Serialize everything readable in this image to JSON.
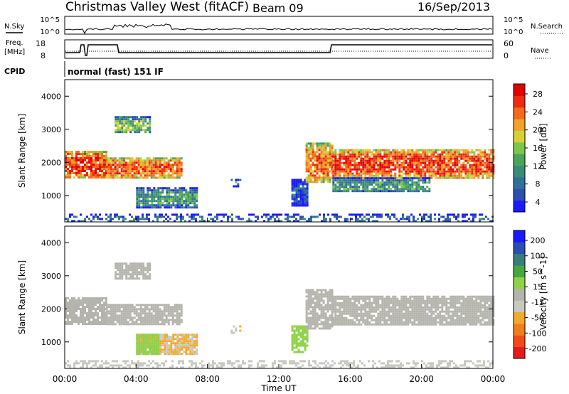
{
  "header": {
    "station": "Christmas Valley West (fitACF)",
    "beam": "Beam 09",
    "date": "16/Sep/2013"
  },
  "top_panels": {
    "nsky_label": "N.Sky",
    "nsky_ticks": [
      "10^5",
      "10^0"
    ],
    "nsearch_label": "N.Search",
    "nsearch_ticks": [
      "10^5",
      "10^0"
    ],
    "freq_label_line1": "Freq.",
    "freq_label_line2": "[MHz]",
    "freq_ticks": [
      "18",
      "8"
    ],
    "nave_label": "Nave",
    "nave_ticks": [
      "60",
      "0"
    ],
    "cpid_label": "CPID",
    "cpid_value": "normal (fast) 151 IF"
  },
  "colors": {
    "power": [
      "#1a1aff",
      "#2a4fb0",
      "#2f6f9a",
      "#3a8a78",
      "#4aa55a",
      "#7cc74a",
      "#d6d036",
      "#f0a22a",
      "#f46a1a",
      "#ee2a10",
      "#e00000"
    ],
    "velocity": [
      "#e41a1c",
      "#f44a1a",
      "#f07f1a",
      "#f2aa2a",
      "#c8c8c0",
      "#b4b4ac",
      "#8fd14b",
      "#46a83c",
      "#3a7d7a",
      "#2b4fb0",
      "#1a1aff"
    ],
    "grid": "#cccccc"
  },
  "chart_data": [
    {
      "type": "heatmap",
      "name": "Power",
      "xlabel": "Time UT",
      "ylabel": "Slant Range [km]",
      "xlim": [
        0,
        24
      ],
      "ylim": [
        200,
        4500
      ],
      "x_ticks": [
        "00:00",
        "04:00",
        "08:00",
        "12:00",
        "16:00",
        "20:00",
        "00:00"
      ],
      "y_ticks": [
        "1000",
        "2000",
        "3000",
        "4000"
      ],
      "y_tick_values": [
        1000,
        2000,
        3000,
        4000
      ],
      "colorbar_label": "Power [dB]",
      "colorbar_ticks": [
        "28",
        "24",
        "20",
        "16",
        "12",
        "8",
        "4"
      ],
      "colorbar_range": [
        0,
        30
      ],
      "regions": [
        {
          "t": [
            0.0,
            2.3
          ],
          "r": [
            1550,
            2350
          ],
          "level": 0.85
        },
        {
          "t": [
            2.3,
            6.5
          ],
          "r": [
            1550,
            2150
          ],
          "level": 0.8
        },
        {
          "t": [
            2.8,
            4.8
          ],
          "r": [
            2900,
            3400
          ],
          "level": 0.45
        },
        {
          "t": [
            4.0,
            7.4
          ],
          "r": [
            650,
            1250
          ],
          "level": 0.35
        },
        {
          "t": [
            9.3,
            9.8
          ],
          "r": [
            1300,
            1500
          ],
          "level": 0.4
        },
        {
          "t": [
            12.7,
            13.6
          ],
          "r": [
            700,
            1500
          ],
          "level": 0.15
        },
        {
          "t": [
            13.5,
            15.0
          ],
          "r": [
            1400,
            2600
          ],
          "level": 0.75
        },
        {
          "t": [
            15.0,
            24.0
          ],
          "r": [
            1550,
            2400
          ],
          "level": 0.85
        },
        {
          "t": [
            15.0,
            20.5
          ],
          "r": [
            1100,
            1550
          ],
          "level": 0.35
        },
        {
          "t": [
            0.0,
            24.0
          ],
          "r": [
            200,
            450
          ],
          "level": 0.2
        }
      ]
    },
    {
      "type": "heatmap",
      "name": "Velocity",
      "xlabel": "Time UT",
      "ylabel": "Slant Range [km]",
      "xlim": [
        0,
        24
      ],
      "ylim": [
        200,
        4500
      ],
      "x_ticks": [
        "00:00",
        "04:00",
        "08:00",
        "12:00",
        "16:00",
        "20:00",
        "00:00"
      ],
      "y_ticks": [
        "1000",
        "2000",
        "3000",
        "4000"
      ],
      "y_tick_values": [
        1000,
        2000,
        3000,
        4000
      ],
      "colorbar_label": "Velocity [m s^-1]",
      "colorbar_ticks": [
        "200",
        "100",
        "50",
        "15",
        "-15",
        "-50",
        "-100",
        "-200"
      ],
      "colorbar_range": [
        -250,
        250
      ],
      "regions": [
        {
          "t": [
            0.0,
            2.3
          ],
          "r": [
            1550,
            2350
          ],
          "value": -5
        },
        {
          "t": [
            2.3,
            6.5
          ],
          "r": [
            1550,
            2150
          ],
          "value": -5
        },
        {
          "t": [
            2.8,
            4.8
          ],
          "r": [
            2900,
            3400
          ],
          "value": -5
        },
        {
          "t": [
            4.0,
            7.4
          ],
          "r": [
            650,
            1250
          ],
          "value": -70
        },
        {
          "t": [
            4.0,
            5.2
          ],
          "r": [
            650,
            1250
          ],
          "value": 40
        },
        {
          "t": [
            9.3,
            9.8
          ],
          "r": [
            1300,
            1500
          ],
          "value": -60
        },
        {
          "t": [
            12.7,
            13.6
          ],
          "r": [
            700,
            1500
          ],
          "value": 40
        },
        {
          "t": [
            13.5,
            15.0
          ],
          "r": [
            1400,
            2600
          ],
          "value": 5
        },
        {
          "t": [
            15.0,
            24.0
          ],
          "r": [
            1550,
            2400
          ],
          "value": -5
        },
        {
          "t": [
            0.0,
            24.0
          ],
          "r": [
            200,
            450
          ],
          "value": -40
        }
      ]
    }
  ]
}
